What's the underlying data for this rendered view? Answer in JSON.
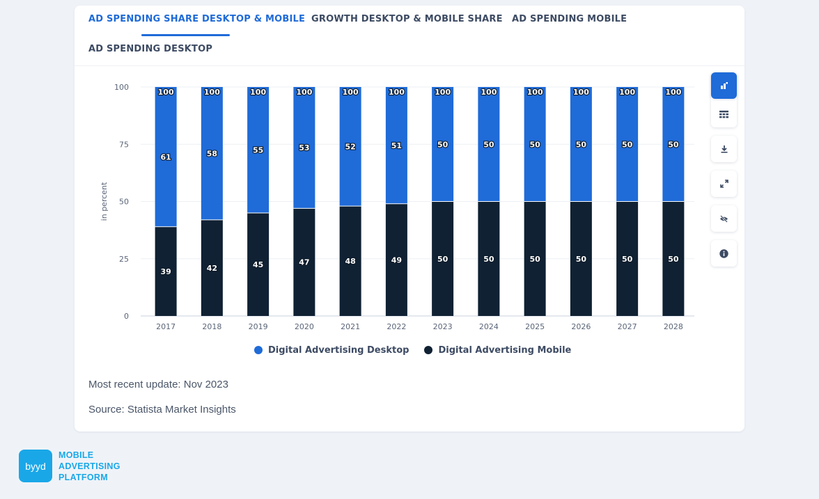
{
  "tabs": [
    {
      "label": "AD SPENDING SHARE DESKTOP & MOBILE",
      "active": true
    },
    {
      "label": "GROWTH DESKTOP & MOBILE SHARE",
      "active": false
    },
    {
      "label": "AD SPENDING MOBILE",
      "active": false
    },
    {
      "label": "AD SPENDING DESKTOP",
      "active": false
    }
  ],
  "colors": {
    "desktop": "#1f6bd8",
    "mobile": "#0f2133",
    "accent": "#1f6bd8",
    "brand": "#1aa7e8"
  },
  "tools": [
    {
      "name": "bar-chart-icon"
    },
    {
      "name": "table-icon"
    },
    {
      "name": "download-icon"
    },
    {
      "name": "expand-icon"
    },
    {
      "name": "hide-icon"
    },
    {
      "name": "info-icon"
    }
  ],
  "meta": {
    "update": "Most recent update: Nov 2023",
    "source": "Source: Statista Market Insights"
  },
  "brand": {
    "logo_text": "byyd",
    "line1": "MOBILE",
    "line2": "ADVERTISING",
    "line3": "PLATFORM"
  },
  "chart_data": {
    "type": "bar",
    "stacked": true,
    "title": "",
    "xlabel": "",
    "ylabel": "in percent",
    "ylim": [
      0,
      100
    ],
    "yticks": [
      0,
      25,
      50,
      75,
      100
    ],
    "grid": true,
    "legend_position": "bottom",
    "categories": [
      "2017",
      "2018",
      "2019",
      "2020",
      "2021",
      "2022",
      "2023",
      "2024",
      "2025",
      "2026",
      "2027",
      "2028"
    ],
    "totals": [
      100,
      100,
      100,
      100,
      100,
      100,
      100,
      100,
      100,
      100,
      100,
      100
    ],
    "series": [
      {
        "name": "Digital Advertising Mobile",
        "values": [
          39,
          42,
          45,
          47,
          48,
          49,
          50,
          50,
          50,
          50,
          50,
          50
        ]
      },
      {
        "name": "Digital Advertising Desktop",
        "values": [
          61,
          58,
          55,
          53,
          52,
          51,
          50,
          50,
          50,
          50,
          50,
          50
        ]
      }
    ]
  }
}
